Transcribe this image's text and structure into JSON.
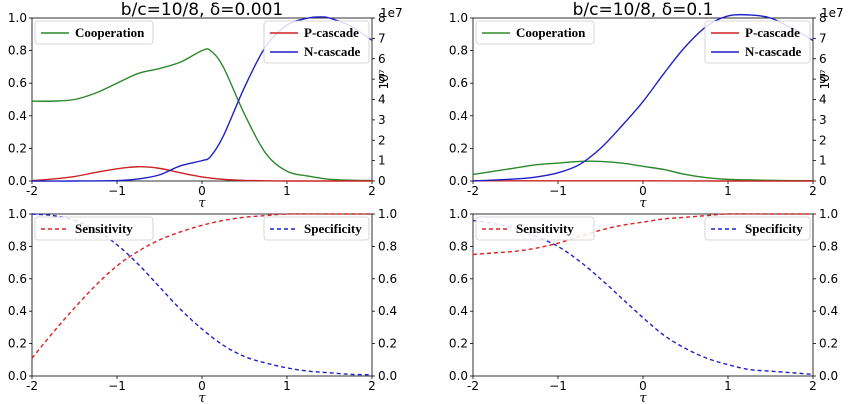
{
  "chart_data": [
    {
      "type": "line",
      "title": "b/c=10/8, δ=0.001",
      "xlabel": "τ",
      "xlim": [
        -2,
        2
      ],
      "xticks": [
        "-2",
        "−1",
        "0",
        "1",
        "2"
      ],
      "ylim_left": [
        0,
        1.0
      ],
      "yticks_left": [
        "0.0",
        "0.2",
        "0.4",
        "0.6",
        "0.8",
        "1.0"
      ],
      "ylim_right": [
        0,
        8
      ],
      "yticks_right": [
        "0",
        "1",
        "2",
        "3",
        "4",
        "5",
        "6",
        "7",
        "8"
      ],
      "right_axis_exponent": "10⁷",
      "right_axis_offset": "1e7",
      "legend_left": {
        "position": "upper left",
        "entries": [
          "Cooperation"
        ]
      },
      "legend_right": {
        "position": "upper right",
        "entries": [
          "P-cascade",
          "N-cascade"
        ]
      },
      "series": [
        {
          "name": "Cooperation",
          "axis": "left",
          "color": "#2a8a2a",
          "style": "solid",
          "x": [
            -2,
            -1.75,
            -1.5,
            -1.25,
            -1.0,
            -0.75,
            -0.5,
            -0.25,
            0.0,
            0.1,
            0.25,
            0.5,
            0.75,
            1.0,
            1.25,
            1.5,
            1.75,
            2.0
          ],
          "y": [
            0.49,
            0.49,
            0.5,
            0.54,
            0.6,
            0.66,
            0.69,
            0.73,
            0.8,
            0.8,
            0.7,
            0.41,
            0.17,
            0.06,
            0.03,
            0.01,
            0.005,
            0.003
          ]
        },
        {
          "name": "P-cascade",
          "axis": "right",
          "color": "#cc2222",
          "style": "solid",
          "x": [
            -2,
            -1.75,
            -1.5,
            -1.25,
            -1.0,
            -0.75,
            -0.5,
            -0.25,
            0.0,
            0.25,
            0.5,
            0.75,
            1.0,
            1.5,
            2.0
          ],
          "y": [
            0.02,
            0.1,
            0.22,
            0.42,
            0.6,
            0.7,
            0.62,
            0.4,
            0.2,
            0.08,
            0.03,
            0.01,
            0.0,
            0.0,
            0.0
          ]
        },
        {
          "name": "N-cascade",
          "axis": "right",
          "color": "#1f1fc8",
          "style": "solid",
          "x": [
            -2,
            -1.5,
            -1.0,
            -0.75,
            -0.5,
            -0.25,
            0.0,
            0.1,
            0.25,
            0.5,
            0.75,
            1.0,
            1.25,
            1.4,
            1.5,
            1.75,
            2.0
          ],
          "y": [
            0.0,
            0.0,
            0.02,
            0.1,
            0.3,
            0.75,
            1.0,
            1.2,
            2.2,
            4.6,
            6.6,
            7.65,
            8.0,
            8.05,
            8.0,
            7.6,
            6.9
          ]
        }
      ]
    },
    {
      "type": "line",
      "title": "b/c=10/8, δ=0.1",
      "xlabel": "τ",
      "xlim": [
        -2,
        2
      ],
      "xticks": [
        "-2",
        "−1",
        "0",
        "1",
        "2"
      ],
      "ylim_left": [
        0,
        1.0
      ],
      "yticks_left": [
        "0.0",
        "0.2",
        "0.4",
        "0.6",
        "0.8",
        "1.0"
      ],
      "ylim_right": [
        0,
        8
      ],
      "yticks_right": [
        "0",
        "1",
        "2",
        "3",
        "4",
        "5",
        "6",
        "7",
        "8"
      ],
      "right_axis_exponent": "10⁷",
      "right_axis_offset": "1e7",
      "legend_left": {
        "position": "upper left",
        "entries": [
          "Cooperation"
        ]
      },
      "legend_right": {
        "position": "upper right",
        "entries": [
          "P-cascade",
          "N-cascade"
        ]
      },
      "series": [
        {
          "name": "Cooperation",
          "axis": "left",
          "color": "#2a8a2a",
          "style": "solid",
          "x": [
            -2,
            -1.75,
            -1.5,
            -1.25,
            -1.0,
            -0.75,
            -0.5,
            -0.25,
            0.0,
            0.25,
            0.5,
            0.75,
            1.0,
            1.5,
            2.0
          ],
          "y": [
            0.04,
            0.06,
            0.08,
            0.1,
            0.11,
            0.12,
            0.12,
            0.11,
            0.09,
            0.07,
            0.04,
            0.02,
            0.01,
            0.004,
            0.002
          ]
        },
        {
          "name": "P-cascade",
          "axis": "right",
          "color": "#cc2222",
          "style": "solid",
          "x": [
            -2,
            -1,
            0,
            1,
            2
          ],
          "y": [
            0.01,
            0.01,
            0.01,
            0.0,
            0.0
          ]
        },
        {
          "name": "N-cascade",
          "axis": "right",
          "color": "#1f1fc8",
          "style": "solid",
          "x": [
            -2,
            -1.5,
            -1.25,
            -1.0,
            -0.75,
            -0.5,
            -0.25,
            0.0,
            0.25,
            0.5,
            0.75,
            1.0,
            1.25,
            1.5,
            1.75,
            2.0
          ],
          "y": [
            0.0,
            0.1,
            0.2,
            0.4,
            0.8,
            1.6,
            2.7,
            3.9,
            5.3,
            6.6,
            7.6,
            8.1,
            8.15,
            8.0,
            7.5,
            6.9
          ]
        }
      ]
    },
    {
      "type": "line",
      "xlabel": "τ",
      "xlim": [
        -2,
        2
      ],
      "xticks": [
        "-2",
        "−1",
        "0",
        "1",
        "2"
      ],
      "ylim_left": [
        0,
        1.0
      ],
      "yticks_left": [
        "0.0",
        "0.2",
        "0.4",
        "0.6",
        "0.8",
        "1.0"
      ],
      "ylim_right": [
        0,
        1.0
      ],
      "yticks_right": [
        "0.0",
        "0.2",
        "0.4",
        "0.6",
        "0.8",
        "1.0"
      ],
      "legend_left": {
        "position": "upper left",
        "entries": [
          "Sensitivity"
        ]
      },
      "legend_right": {
        "position": "upper right",
        "entries": [
          "Specificity"
        ]
      },
      "series": [
        {
          "name": "Sensitivity",
          "axis": "left",
          "color": "#e02020",
          "style": "dashed",
          "x": [
            -2,
            -1.75,
            -1.5,
            -1.25,
            -1.0,
            -0.75,
            -0.5,
            -0.25,
            0.0,
            0.25,
            0.5,
            0.75,
            1.0,
            1.5,
            2.0
          ],
          "y": [
            0.11,
            0.27,
            0.42,
            0.56,
            0.68,
            0.77,
            0.84,
            0.89,
            0.93,
            0.96,
            0.98,
            0.99,
            1.0,
            1.0,
            1.0
          ]
        },
        {
          "name": "Specificity",
          "axis": "right",
          "color": "#1f1fc8",
          "style": "dashed",
          "x": [
            -2,
            -1.75,
            -1.5,
            -1.25,
            -1.0,
            -0.75,
            -0.5,
            -0.25,
            0.0,
            0.25,
            0.5,
            0.75,
            1.0,
            1.25,
            1.5,
            1.75,
            2.0
          ],
          "y": [
            1.0,
            0.99,
            0.96,
            0.9,
            0.81,
            0.69,
            0.55,
            0.41,
            0.29,
            0.19,
            0.12,
            0.08,
            0.05,
            0.03,
            0.02,
            0.01,
            0.008
          ]
        }
      ]
    },
    {
      "type": "line",
      "xlabel": "τ",
      "xlim": [
        -2,
        2
      ],
      "xticks": [
        "-2",
        "−1",
        "0",
        "1",
        "2"
      ],
      "ylim_left": [
        0,
        1.0
      ],
      "yticks_left": [
        "0.0",
        "0.2",
        "0.4",
        "0.6",
        "0.8",
        "1.0"
      ],
      "ylim_right": [
        0,
        1.0
      ],
      "yticks_right": [
        "0.0",
        "0.2",
        "0.4",
        "0.6",
        "0.8",
        "1.0"
      ],
      "legend_left": {
        "position": "upper left",
        "entries": [
          "Sensitivity"
        ]
      },
      "legend_right": {
        "position": "upper right",
        "entries": [
          "Specificity"
        ]
      },
      "series": [
        {
          "name": "Sensitivity",
          "axis": "left",
          "color": "#e02020",
          "style": "dashed",
          "x": [
            -2,
            -1.75,
            -1.5,
            -1.25,
            -1.0,
            -0.75,
            -0.5,
            -0.25,
            0.0,
            0.25,
            0.5,
            0.75,
            1.0,
            1.5,
            2.0
          ],
          "y": [
            0.75,
            0.76,
            0.77,
            0.79,
            0.82,
            0.86,
            0.9,
            0.93,
            0.95,
            0.97,
            0.98,
            0.99,
            1.0,
            1.0,
            1.0
          ]
        },
        {
          "name": "Specificity",
          "axis": "right",
          "color": "#1f1fc8",
          "style": "dashed",
          "x": [
            -2,
            -1.75,
            -1.5,
            -1.25,
            -1.0,
            -0.75,
            -0.5,
            -0.25,
            0.0,
            0.25,
            0.5,
            0.75,
            1.0,
            1.25,
            1.5,
            1.75,
            2.0
          ],
          "y": [
            0.96,
            0.94,
            0.91,
            0.86,
            0.8,
            0.71,
            0.6,
            0.48,
            0.36,
            0.25,
            0.17,
            0.11,
            0.07,
            0.04,
            0.03,
            0.02,
            0.01
          ]
        }
      ]
    }
  ]
}
